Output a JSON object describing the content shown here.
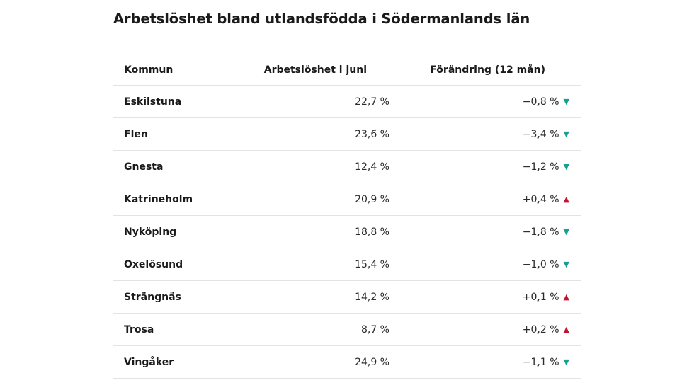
{
  "title": "Arbetslöshet bland utlandsfödda i Södermanlands län",
  "colors": {
    "down": "#1a9e8f",
    "up": "#c0152f",
    "divider": "#e3e3e3"
  },
  "table": {
    "headers": [
      "Kommun",
      "Arbetslöshet i juni",
      "Förändring (12 mån)"
    ],
    "rows": [
      {
        "kommun": "Eskilstuna",
        "arbetsloshet": "22,7 %",
        "forandring": "−0,8 %",
        "trend": "down",
        "arrow": "▼"
      },
      {
        "kommun": "Flen",
        "arbetsloshet": "23,6 %",
        "forandring": "−3,4 %",
        "trend": "down",
        "arrow": "▼"
      },
      {
        "kommun": "Gnesta",
        "arbetsloshet": "12,4 %",
        "forandring": "−1,2 %",
        "trend": "down",
        "arrow": "▼"
      },
      {
        "kommun": "Katrineholm",
        "arbetsloshet": "20,9 %",
        "forandring": "+0,4 %",
        "trend": "up",
        "arrow": "▲"
      },
      {
        "kommun": "Nyköping",
        "arbetsloshet": "18,8 %",
        "forandring": "−1,8 %",
        "trend": "down",
        "arrow": "▼"
      },
      {
        "kommun": "Oxelösund",
        "arbetsloshet": "15,4 %",
        "forandring": "−1,0 %",
        "trend": "down",
        "arrow": "▼"
      },
      {
        "kommun": "Strängnäs",
        "arbetsloshet": "14,2 %",
        "forandring": "+0,1 %",
        "trend": "up",
        "arrow": "▲"
      },
      {
        "kommun": "Trosa",
        "arbetsloshet": "8,7 %",
        "forandring": "+0,2 %",
        "trend": "up",
        "arrow": "▲"
      },
      {
        "kommun": "Vingåker",
        "arbetsloshet": "24,9 %",
        "forandring": "−1,1 %",
        "trend": "down",
        "arrow": "▼"
      }
    ]
  }
}
